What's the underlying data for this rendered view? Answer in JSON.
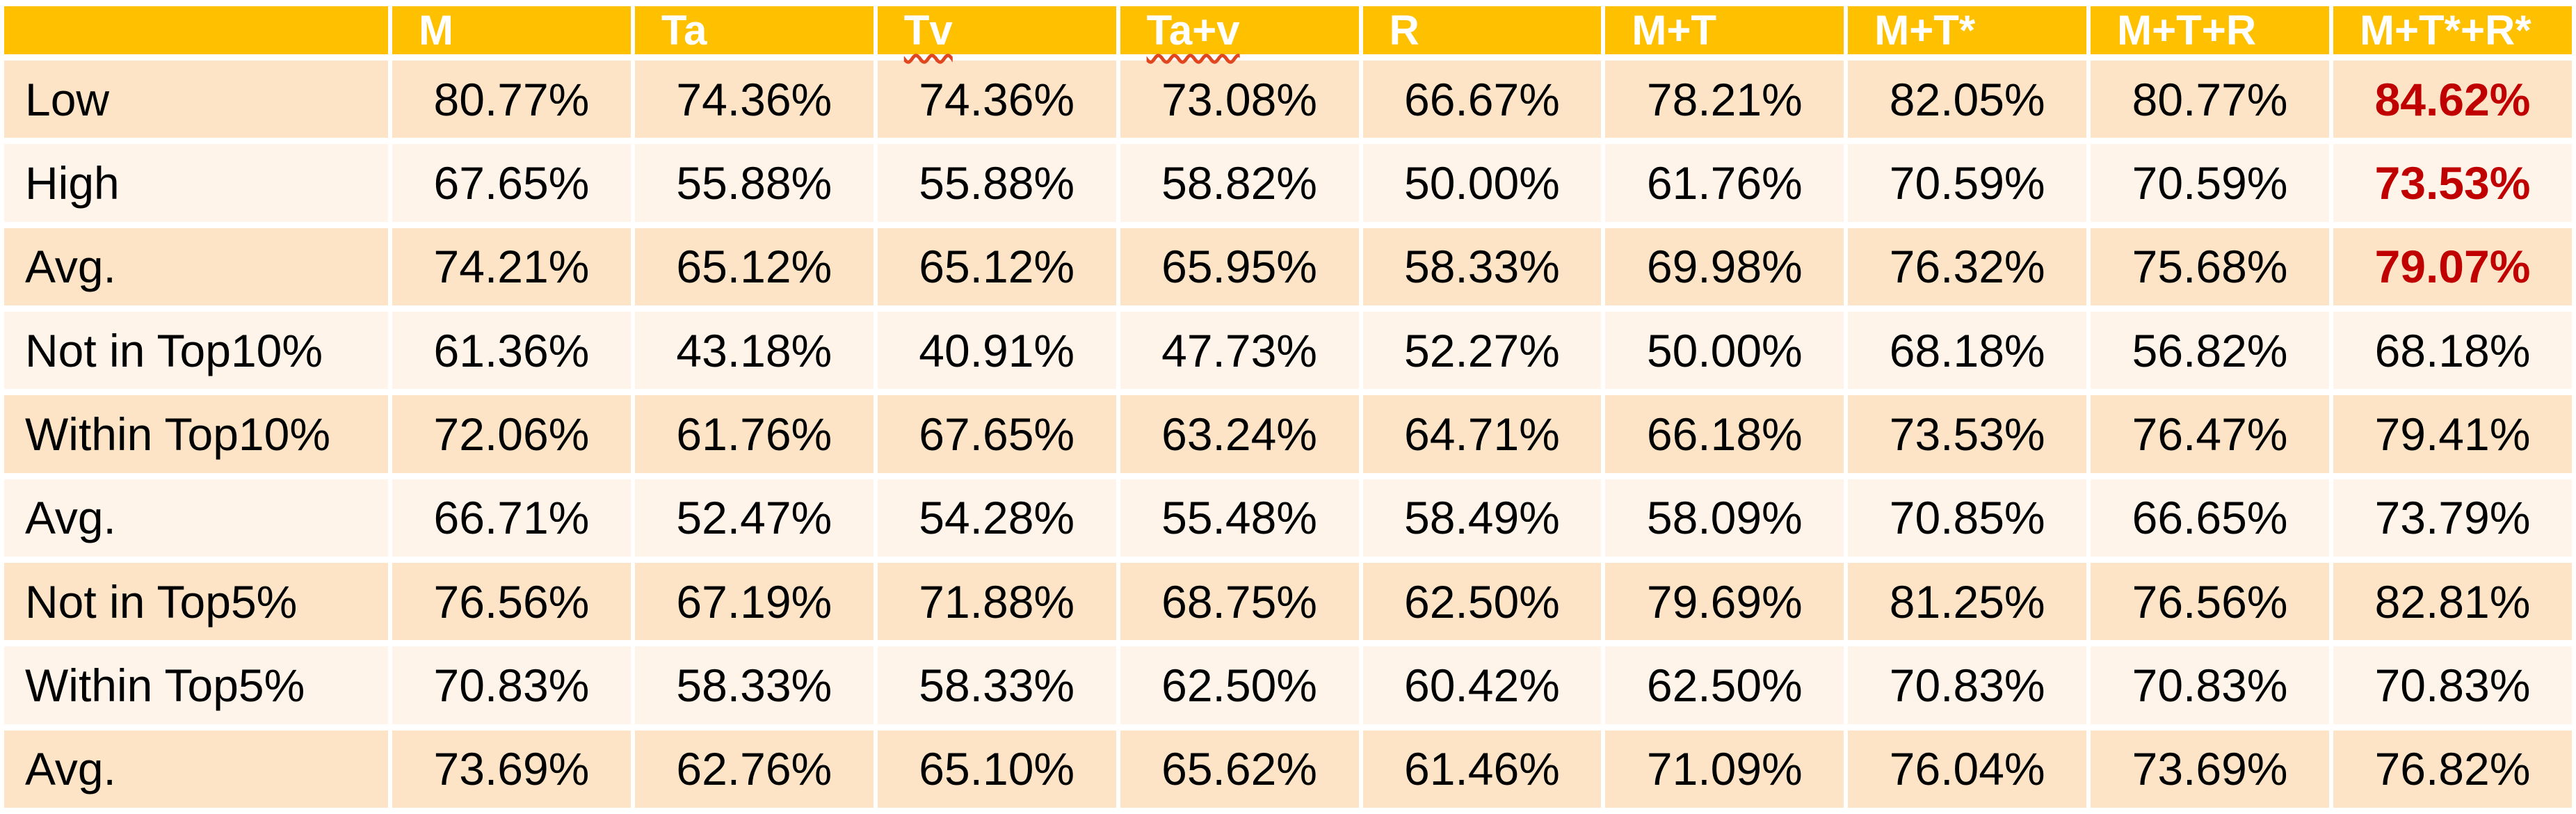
{
  "colors": {
    "header_bg": "#FFC000",
    "header_text": "#FFFFFF",
    "band_dark": "#FDE4C7",
    "band_light": "#FEF4EA",
    "value_text": "#000000",
    "highlight_text": "#C00000",
    "gridline": "#FFFFFF",
    "spellcheck_squiggle": "#E0471E"
  },
  "chart_data": {
    "type": "table",
    "columns": [
      {
        "label": "",
        "squiggle": false
      },
      {
        "label": "M",
        "squiggle": false
      },
      {
        "label": "Ta",
        "squiggle": false
      },
      {
        "label": "Tv",
        "squiggle": true
      },
      {
        "label": "Ta+v",
        "squiggle": true
      },
      {
        "label": "R",
        "squiggle": false
      },
      {
        "label": "M+T",
        "squiggle": false
      },
      {
        "label": "M+T*",
        "squiggle": false
      },
      {
        "label": "M+T+R",
        "squiggle": false
      },
      {
        "label": "M+T*+R*",
        "squiggle": false
      }
    ],
    "rows": [
      {
        "label": "Low",
        "values": [
          "80.77%",
          "74.36%",
          "74.36%",
          "73.08%",
          "66.67%",
          "78.21%",
          "82.05%",
          "80.77%",
          "84.62%"
        ],
        "last_value_red": true
      },
      {
        "label": "High",
        "values": [
          "67.65%",
          "55.88%",
          "55.88%",
          "58.82%",
          "50.00%",
          "61.76%",
          "70.59%",
          "70.59%",
          "73.53%"
        ],
        "last_value_red": true
      },
      {
        "label": "Avg.",
        "values": [
          "74.21%",
          "65.12%",
          "65.12%",
          "65.95%",
          "58.33%",
          "69.98%",
          "76.32%",
          "75.68%",
          "79.07%"
        ],
        "last_value_red": true
      },
      {
        "label": "Not in Top10%",
        "values": [
          "61.36%",
          "43.18%",
          "40.91%",
          "47.73%",
          "52.27%",
          "50.00%",
          "68.18%",
          "56.82%",
          "68.18%"
        ],
        "last_value_red": false
      },
      {
        "label": "Within Top10%",
        "values": [
          "72.06%",
          "61.76%",
          "67.65%",
          "63.24%",
          "64.71%",
          "66.18%",
          "73.53%",
          "76.47%",
          "79.41%"
        ],
        "last_value_red": false
      },
      {
        "label": "Avg.",
        "values": [
          "66.71%",
          "52.47%",
          "54.28%",
          "55.48%",
          "58.49%",
          "58.09%",
          "70.85%",
          "66.65%",
          "73.79%"
        ],
        "last_value_red": false
      },
      {
        "label": "Not in Top5%",
        "values": [
          "76.56%",
          "67.19%",
          "71.88%",
          "68.75%",
          "62.50%",
          "79.69%",
          "81.25%",
          "76.56%",
          "82.81%"
        ],
        "last_value_red": false
      },
      {
        "label": "Within Top5%",
        "values": [
          "70.83%",
          "58.33%",
          "58.33%",
          "62.50%",
          "60.42%",
          "62.50%",
          "70.83%",
          "70.83%",
          "70.83%"
        ],
        "last_value_red": false
      },
      {
        "label": "Avg.",
        "values": [
          "73.69%",
          "62.76%",
          "65.10%",
          "65.62%",
          "61.46%",
          "71.09%",
          "76.04%",
          "73.69%",
          "76.82%"
        ],
        "last_value_red": false
      }
    ]
  }
}
